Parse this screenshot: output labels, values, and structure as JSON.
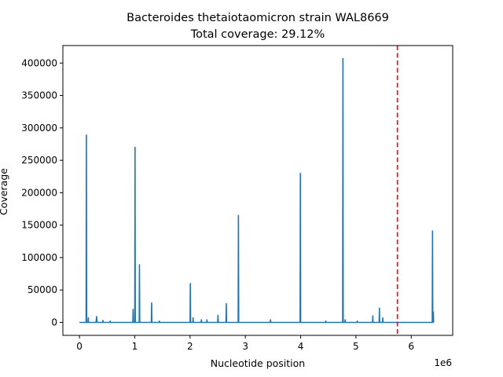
{
  "chart_data": {
    "type": "line",
    "title": "Bacteroides thetaiotaomicron strain WAL8669",
    "subtitle": "Total coverage: 29.12%",
    "xlabel": "Nucleotide position",
    "ylabel": "Coverage",
    "x_offset_label": "1e6",
    "xlim": [
      -300000,
      6750000
    ],
    "ylim": [
      -20000,
      427000
    ],
    "x_ticks": [
      {
        "value": 0,
        "label": "0"
      },
      {
        "value": 1000000,
        "label": "1"
      },
      {
        "value": 2000000,
        "label": "2"
      },
      {
        "value": 3000000,
        "label": "3"
      },
      {
        "value": 4000000,
        "label": "4"
      },
      {
        "value": 5000000,
        "label": "5"
      },
      {
        "value": 6000000,
        "label": "6"
      }
    ],
    "y_ticks": [
      {
        "value": 0,
        "label": "0"
      },
      {
        "value": 50000,
        "label": "50000"
      },
      {
        "value": 100000,
        "label": "100000"
      },
      {
        "value": 150000,
        "label": "150000"
      },
      {
        "value": 200000,
        "label": "200000"
      },
      {
        "value": 250000,
        "label": "250000"
      },
      {
        "value": 300000,
        "label": "300000"
      },
      {
        "value": 350000,
        "label": "350000"
      },
      {
        "value": 400000,
        "label": "400000"
      }
    ],
    "series": [
      {
        "color": "#1f77b4",
        "x": [
          0,
          120000,
          125000,
          130000,
          155000,
          160000,
          165000,
          300000,
          310000,
          320000,
          420000,
          425000,
          430000,
          550000,
          555000,
          560000,
          965000,
          970000,
          975000,
          1000000,
          1005000,
          1010000,
          1080000,
          1085000,
          1090000,
          1300000,
          1305000,
          1310000,
          1440000,
          1445000,
          1450000,
          2000000,
          2005000,
          2010000,
          2050000,
          2055000,
          2060000,
          2200000,
          2205000,
          2210000,
          2300000,
          2305000,
          2310000,
          2500000,
          2505000,
          2510000,
          2650000,
          2655000,
          2660000,
          2870000,
          2875000,
          2880000,
          3450000,
          3455000,
          3460000,
          3990000,
          3995000,
          4000000,
          4450000,
          4455000,
          4460000,
          4760000,
          4765000,
          4770000,
          4800000,
          4805000,
          4810000,
          5020000,
          5025000,
          5030000,
          5300000,
          5305000,
          5310000,
          5420000,
          5425000,
          5430000,
          5480000,
          5485000,
          5490000,
          6380000,
          6385000,
          6390000,
          6395000,
          6400000,
          6405000
        ],
        "y": [
          0,
          0,
          289000,
          0,
          0,
          7000,
          0,
          0,
          9000,
          0,
          0,
          3000,
          0,
          0,
          2000,
          0,
          0,
          20000,
          0,
          0,
          270000,
          0,
          0,
          89000,
          0,
          0,
          30000,
          0,
          0,
          2000,
          0,
          0,
          60000,
          0,
          0,
          7000,
          0,
          0,
          4000,
          0,
          0,
          4000,
          0,
          0,
          11000,
          0,
          0,
          29000,
          0,
          0,
          165000,
          0,
          0,
          4000,
          0,
          0,
          230000,
          0,
          0,
          2000,
          0,
          0,
          407000,
          0,
          0,
          4000,
          0,
          0,
          2000,
          0,
          0,
          10000,
          0,
          0,
          22000,
          0,
          0,
          7000,
          0,
          0,
          141000,
          0,
          0,
          16000,
          0
        ]
      }
    ],
    "reference_lines": [
      {
        "orientation": "vertical",
        "x": 5750000,
        "color": "#ff0000",
        "style": "dashed"
      }
    ],
    "grid": false,
    "legend": "none"
  }
}
